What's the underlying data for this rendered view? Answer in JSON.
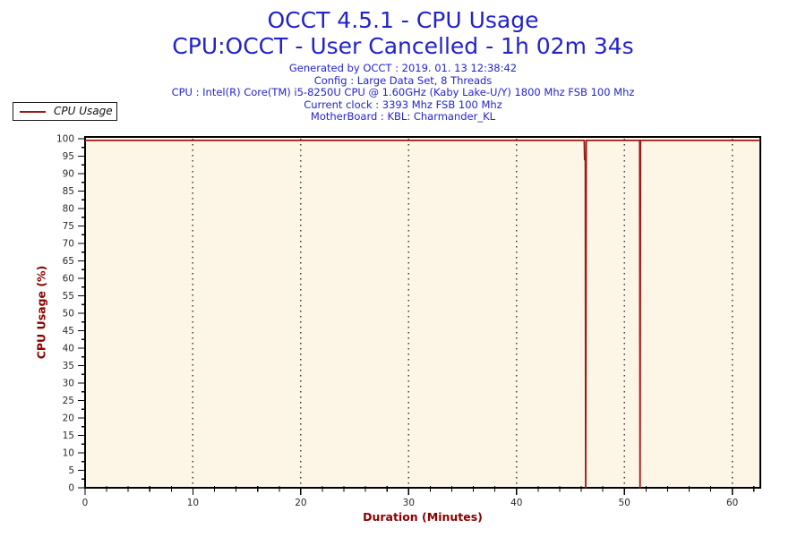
{
  "header": {
    "title": "OCCT 4.5.1 - CPU Usage",
    "subtitle": "CPU:OCCT - User Cancelled - 1h 02m 34s",
    "info_lines": [
      "Generated by OCCT : 2019. 01. 13 12:38:42",
      "Config : Large Data Set, 8 Threads",
      "CPU : Intel(R) Core(TM) i5-8250U CPU @ 1.60GHz (Kaby Lake-U/Y) 1800 Mhz FSB 100 Mhz",
      "Current clock : 3393 Mhz FSB 100 Mhz",
      "MotherBoard : KBL: Charmander_KL"
    ]
  },
  "legend": {
    "label": "CPU Usage",
    "position": "top-left"
  },
  "colors": {
    "title_blue": "#2222cc",
    "info_blue": "#2424cf",
    "axis_title_red": "#8b0000",
    "line_red": "#9c1a1a",
    "plot_bg": "#fdf6e7",
    "grid_dot": "#3a3a3a",
    "axis_black": "#000000",
    "tick_text": "#2b2b2b"
  },
  "chart_data": {
    "type": "line",
    "title": "OCCT 4.5.1 - CPU Usage",
    "xlabel": "Duration (Minutes)",
    "ylabel": "CPU Usage (%)",
    "xlim": [
      0,
      62.6
    ],
    "ylim": [
      0,
      100
    ],
    "x_ticks": [
      0,
      10,
      20,
      30,
      40,
      50,
      60
    ],
    "x_tick_labels": [
      "0",
      "10",
      "20",
      "30",
      "40",
      "50",
      "60"
    ],
    "x_minor_step": 2,
    "y_ticks": [
      0,
      5,
      10,
      15,
      20,
      25,
      30,
      35,
      40,
      45,
      50,
      55,
      60,
      65,
      70,
      75,
      80,
      85,
      90,
      95,
      100
    ],
    "y_major_step": 5,
    "y_minor_step": 2.5,
    "grid": "vertical-dotted-at-x-majors",
    "legend_position": "top-left-outside",
    "series": [
      {
        "name": "CPU Usage",
        "color": "#9c1a1a",
        "points": [
          [
            0,
            99.5
          ],
          [
            46.28,
            99.5
          ],
          [
            46.31,
            94
          ],
          [
            46.38,
            94
          ],
          [
            46.41,
            0
          ],
          [
            46.46,
            99.5
          ],
          [
            51.42,
            99.5
          ],
          [
            51.45,
            0
          ],
          [
            51.49,
            99.5
          ],
          [
            62.6,
            99.5
          ]
        ],
        "summary": "Flat at ~99.5% for whole run; brief dip to ~94% then to 0% at ~46.4 min; second dip to 0% at ~51.5 min"
      }
    ]
  }
}
